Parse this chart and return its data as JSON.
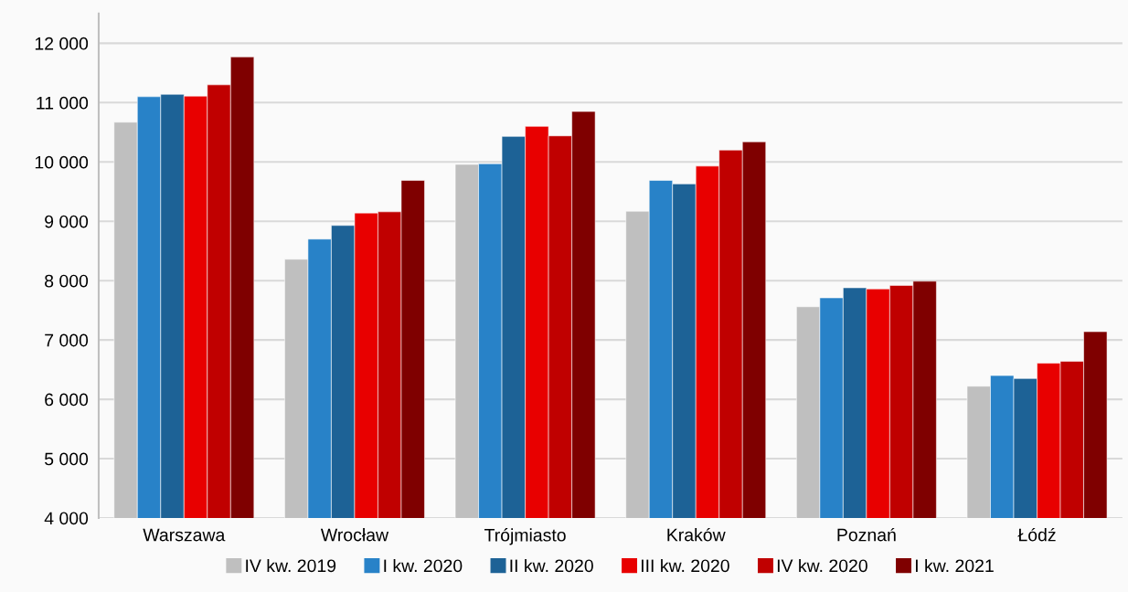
{
  "chart_data": {
    "type": "bar",
    "categories": [
      "Warszawa",
      "Wrocław",
      "Trójmiasto",
      "Kraków",
      "Poznań",
      "Łódź"
    ],
    "series": [
      {
        "name": "IV kw. 2019",
        "color": "#bfbfbf",
        "values": [
          10670,
          8360,
          9960,
          9170,
          7560,
          6220
        ]
      },
      {
        "name": "I kw. 2020",
        "color": "#2882c8",
        "values": [
          11100,
          8700,
          9970,
          9690,
          7710,
          6400
        ]
      },
      {
        "name": "II kw. 2020",
        "color": "#1d6296",
        "values": [
          11140,
          8930,
          10430,
          9630,
          7880,
          6350
        ]
      },
      {
        "name": "III kw. 2020",
        "color": "#e80000",
        "values": [
          11110,
          9140,
          10600,
          9930,
          7860,
          6610
        ]
      },
      {
        "name": "IV kw. 2020",
        "color": "#c00000",
        "values": [
          11300,
          9160,
          10440,
          10200,
          7920,
          6640
        ]
      },
      {
        "name": "I kw. 2021",
        "color": "#7f0000",
        "values": [
          11770,
          9690,
          10850,
          10340,
          7990,
          7140
        ]
      }
    ],
    "ylim": [
      4000,
      12500
    ],
    "yticks": [
      {
        "value": 4000,
        "label": "4 000"
      },
      {
        "value": 5000,
        "label": "5 000"
      },
      {
        "value": 6000,
        "label": "6 000"
      },
      {
        "value": 7000,
        "label": "7 000"
      },
      {
        "value": 8000,
        "label": "8 000"
      },
      {
        "value": 9000,
        "label": "9 000"
      },
      {
        "value": 10000,
        "label": "10 000"
      },
      {
        "value": 11000,
        "label": "11 000"
      },
      {
        "value": 12000,
        "label": "12 000"
      }
    ],
    "grid": "y",
    "legend": "bottom"
  }
}
